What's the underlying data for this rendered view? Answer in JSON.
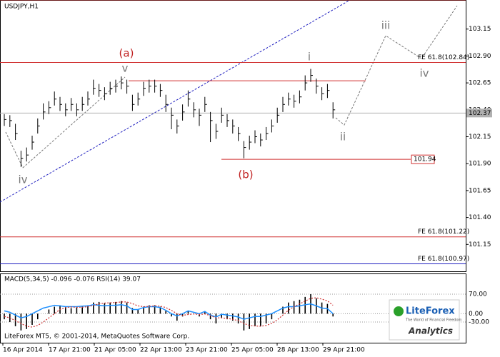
{
  "chart_data": {
    "type": "ohlc",
    "title": "USDJPY,H1",
    "ylim": [
      100.9,
      103.42
    ],
    "yticks": [
      103.15,
      {
        "value": 102.9,
        "label": "102.90"
      },
      102.65,
      {
        "value": 102.4,
        "label": "102.40"
      },
      102.15,
      {
        "value": 101.9,
        "label": "101.90"
      },
      101.65,
      {
        "value": 101.4,
        "label": "101.40"
      },
      101.15
    ],
    "x_labels": [
      "16 Apr 2014",
      "17 Apr 21:00",
      "21 Apr 05:00",
      "22 Apr 13:00",
      "23 Apr 21:00",
      "25 Apr 05:00",
      "28 Apr 13:00",
      "29 Apr 21:00"
    ],
    "bar_color": "#000000",
    "high": [
      102.36,
      102.35,
      102.27,
      102.02,
      102.05,
      102.16,
      102.32,
      102.46,
      102.48,
      102.57,
      102.52,
      102.46,
      102.51,
      102.46,
      102.52,
      102.57,
      102.68,
      102.64,
      102.61,
      102.66,
      102.68,
      102.71,
      102.68,
      102.54,
      102.56,
      102.66,
      102.68,
      102.68,
      102.64,
      102.54,
      102.42,
      102.31,
      102.45,
      102.58,
      102.47,
      102.41,
      102.52,
      102.38,
      102.27,
      102.42,
      102.36,
      102.31,
      102.24,
      102.11,
      102.16,
      102.21,
      102.18,
      102.24,
      102.31,
      102.42,
      102.52,
      102.56,
      102.54,
      102.58,
      102.72,
      102.78,
      102.69,
      102.61,
      102.64,
      102.47
    ],
    "low": [
      102.25,
      102.24,
      102.12,
      101.87,
      101.92,
      102.03,
      102.18,
      102.31,
      102.36,
      102.44,
      102.39,
      102.34,
      102.39,
      102.34,
      102.39,
      102.44,
      102.54,
      102.52,
      102.49,
      102.54,
      102.56,
      102.59,
      102.55,
      102.39,
      102.44,
      102.53,
      102.56,
      102.56,
      102.52,
      102.38,
      102.22,
      102.18,
      102.3,
      102.43,
      102.33,
      102.25,
      102.38,
      102.1,
      102.13,
      102.28,
      102.24,
      102.18,
      102.11,
      101.95,
      102.03,
      102.09,
      102.06,
      102.12,
      102.19,
      102.28,
      102.38,
      102.44,
      102.42,
      102.46,
      102.58,
      102.66,
      102.55,
      102.49,
      102.51,
      102.32
    ],
    "close": [
      102.31,
      102.3,
      102.18,
      101.95,
      101.98,
      102.1,
      102.25,
      102.38,
      102.42,
      102.5,
      102.45,
      102.4,
      102.45,
      102.4,
      102.45,
      102.5,
      102.6,
      102.58,
      102.55,
      102.6,
      102.62,
      102.65,
      102.62,
      102.45,
      102.5,
      102.6,
      102.62,
      102.62,
      102.58,
      102.45,
      102.35,
      102.25,
      102.38,
      102.5,
      102.4,
      102.35,
      102.45,
      102.3,
      102.2,
      102.35,
      102.3,
      102.25,
      102.18,
      102.05,
      102.1,
      102.15,
      102.12,
      102.18,
      102.25,
      102.35,
      102.45,
      102.5,
      102.48,
      102.52,
      102.65,
      102.72,
      102.62,
      102.55,
      102.58,
      102.4
    ],
    "levels": [
      {
        "value": 103.42,
        "color": "#d03030"
      },
      {
        "value": 102.84,
        "color": "#d03030",
        "label": "FE 61.8(102.84)"
      },
      {
        "value": 102.67,
        "color": "#d03030"
      },
      {
        "value": 102.37,
        "color": "#b0b0b0",
        "label": "102.37"
      },
      {
        "value": 101.94,
        "color": "#d03030",
        "label": "101.94"
      },
      {
        "value": 101.22,
        "color": "#d03030",
        "label": "FE 61.8(101.22)"
      },
      {
        "value": 100.97,
        "color": "#2020c0",
        "label": "FE 61.8(100.97)"
      }
    ],
    "annotations": [
      "(a)",
      "v",
      "iv",
      "(b)",
      "i",
      "ii",
      "iii",
      "iv"
    ],
    "indicator": {
      "header": "MACD(5,34,5) -0.096 -0.076 RSI(14) 39.07",
      "ylim": [
        -104,
        144
      ],
      "yticks": [
        {
          "value": 70,
          "label": "70.00"
        },
        {
          "value": 0,
          "label": "0.00"
        },
        {
          "value": -30,
          "label": "-30.00"
        }
      ],
      "histogram": [
        -20,
        -30,
        -45,
        -60,
        -55,
        -40,
        -20,
        0,
        15,
        25,
        30,
        25,
        20,
        22,
        25,
        30,
        40,
        42,
        38,
        40,
        42,
        45,
        40,
        20,
        15,
        25,
        30,
        30,
        25,
        10,
        -10,
        -25,
        -10,
        10,
        0,
        -10,
        5,
        -20,
        -35,
        -15,
        -20,
        -25,
        -35,
        -60,
        -55,
        -45,
        -45,
        -35,
        -20,
        0,
        25,
        40,
        45,
        50,
        60,
        70,
        55,
        40,
        35,
        -10
      ],
      "signal": {
        "color": "#d03030",
        "values": [
          -10,
          -15,
          -25,
          -35,
          -45,
          -48,
          -42,
          -30,
          -15,
          0,
          15,
          22,
          24,
          23,
          23,
          25,
          30,
          35,
          38,
          39,
          40,
          42,
          42,
          36,
          28,
          25,
          26,
          28,
          27,
          22,
          12,
          0,
          -6,
          -3,
          -1,
          -3,
          -1,
          -7,
          -15,
          -15,
          -17,
          -20,
          -25,
          -35,
          -42,
          -44,
          -45,
          -42,
          -35,
          -22,
          -5,
          12,
          25,
          35,
          45,
          55,
          57,
          52,
          46,
          30
        ]
      },
      "line": {
        "color": "#1e90ff",
        "values": [
          10,
          5,
          -5,
          -15,
          -10,
          0,
          10,
          20,
          25,
          30,
          28,
          25,
          25,
          25,
          27,
          28,
          32,
          30,
          28,
          30,
          30,
          32,
          28,
          15,
          15,
          22,
          25,
          25,
          22,
          12,
          0,
          -8,
          0,
          10,
          5,
          0,
          8,
          -5,
          -12,
          -2,
          -5,
          -8,
          -12,
          -20,
          -15,
          -10,
          -10,
          -5,
          0,
          10,
          20,
          25,
          25,
          28,
          32,
          35,
          28,
          20,
          18,
          0
        ]
      }
    },
    "footer": "LiteForex MT5, © 2001-2014, MetaQuotes Software Corp.",
    "logo": {
      "brand": "LiteForex",
      "tagline": "The World of Financial Freedom",
      "product": "Analytics"
    }
  }
}
